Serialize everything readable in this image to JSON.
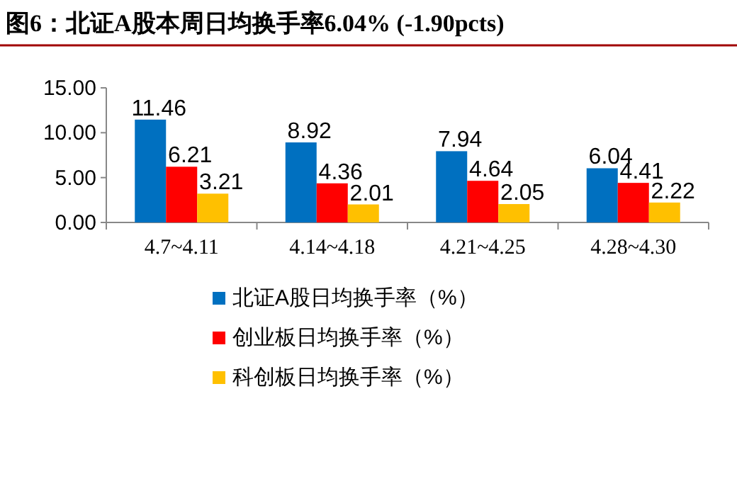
{
  "chart_data": {
    "type": "bar",
    "title": "图6：北证A股本周日均换手率6.04% (-1.90pcts)",
    "categories": [
      "4.7~4.11",
      "4.14~4.18",
      "4.21~4.25",
      "4.28~4.30"
    ],
    "series": [
      {
        "name": "北证A股日均换手率（%）",
        "color": "#0070c0",
        "values": [
          11.46,
          8.92,
          7.94,
          6.04
        ]
      },
      {
        "name": "创业板日均换手率（%）",
        "color": "#ff0000",
        "values": [
          6.21,
          4.36,
          4.64,
          4.41
        ]
      },
      {
        "name": "科创板日均换手率（%）",
        "color": "#ffc000",
        "values": [
          3.21,
          2.01,
          2.05,
          2.22
        ]
      }
    ],
    "ylim": [
      0,
      15
    ],
    "yticks": [
      {
        "value": 0,
        "label": "0.00"
      },
      {
        "value": 5,
        "label": "5.00"
      },
      {
        "value": 10,
        "label": "10.00"
      },
      {
        "value": 15,
        "label": "15.00"
      }
    ],
    "data_labels": true,
    "legend": "bottom",
    "grid": false
  }
}
